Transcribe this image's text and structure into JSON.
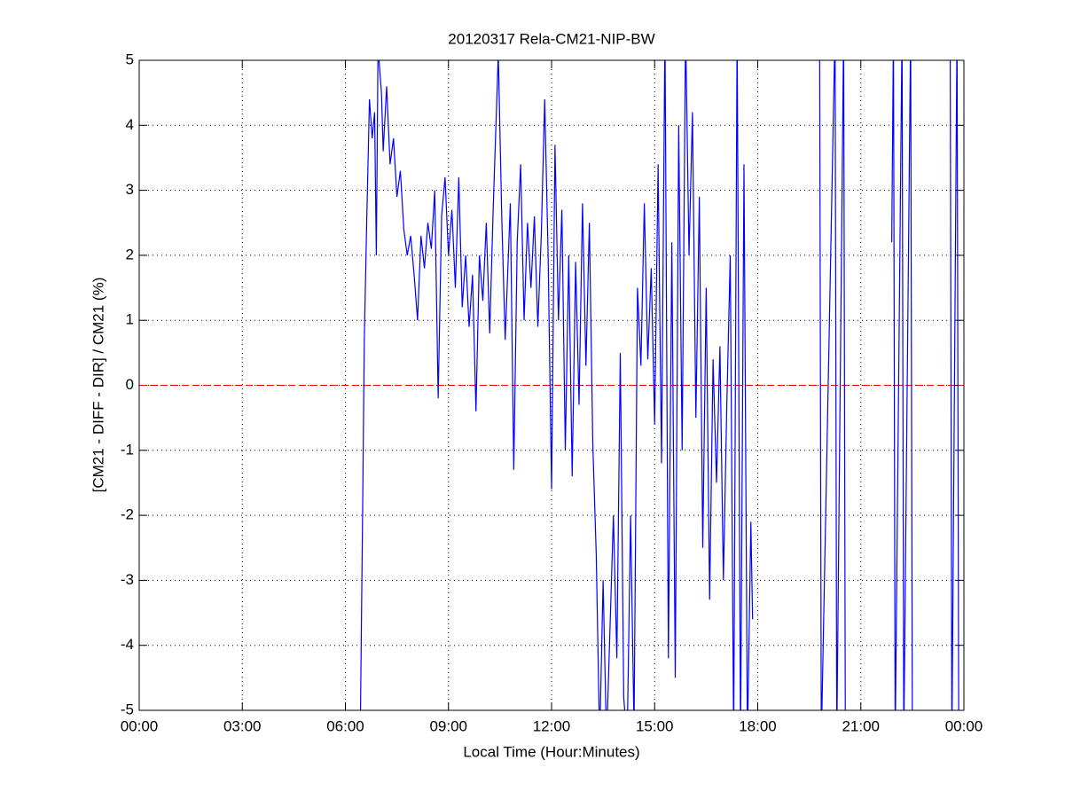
{
  "chart_data": {
    "type": "line",
    "title": "20120317 Rela-CM21-NIP-BW",
    "xlabel": "Local Time (Hour:Minutes)",
    "ylabel": "[CM21 - DIFF - DIR] / CM21 (%)",
    "color": "#0000ff",
    "x": [
      6.43,
      6.5,
      6.55,
      6.62,
      6.7,
      6.78,
      6.85,
      6.9,
      6.95,
      7.05,
      7.1,
      7.2,
      7.3,
      7.4,
      7.5,
      7.6,
      7.7,
      7.8,
      7.9,
      8.0,
      8.1,
      8.2,
      8.3,
      8.4,
      8.5,
      8.6,
      8.7,
      8.8,
      8.9,
      9.0,
      9.1,
      9.2,
      9.3,
      9.4,
      9.5,
      9.6,
      9.7,
      9.8,
      9.9,
      10.0,
      10.1,
      10.2,
      10.3,
      10.45,
      10.55,
      10.65,
      10.8,
      10.9,
      11.0,
      11.1,
      11.2,
      11.3,
      11.4,
      11.5,
      11.6,
      11.7,
      11.8,
      11.9,
      12.0,
      12.1,
      12.2,
      12.3,
      12.4,
      12.5,
      12.6,
      12.7,
      12.8,
      12.9,
      13.0,
      13.1,
      13.2,
      13.3,
      13.4,
      13.5,
      13.6,
      13.8,
      13.9,
      14.0,
      14.1,
      14.2,
      14.3,
      14.4,
      14.5,
      14.6,
      14.7,
      14.8,
      14.9,
      15.0,
      15.1,
      15.2,
      15.3,
      15.4,
      15.5,
      15.6,
      15.7,
      15.8,
      15.9,
      16.0,
      16.1,
      16.2,
      16.3,
      16.4,
      16.5,
      16.6,
      16.7,
      16.8,
      16.9,
      17.0,
      17.1,
      17.2,
      17.3,
      17.4,
      17.5,
      17.6,
      17.7,
      17.8,
      17.85,
      18.8,
      19.8,
      19.85,
      20.25,
      20.3,
      20.5,
      20.55,
      21.2,
      21.9,
      21.95,
      22.0,
      22.2,
      22.25,
      22.45,
      22.5,
      23.0,
      23.6,
      23.65,
      23.8,
      23.85
    ],
    "values": [
      -5.5,
      -2,
      0.7,
      2.5,
      4.4,
      3.8,
      4.2,
      2.0,
      5.2,
      4.5,
      3.6,
      4.6,
      3.4,
      3.8,
      2.9,
      3.3,
      2.4,
      2.0,
      2.3,
      1.7,
      1.0,
      2.3,
      1.8,
      2.5,
      2.1,
      3.0,
      -0.2,
      2.6,
      3.2,
      2.0,
      2.7,
      1.5,
      3.2,
      1.2,
      2.0,
      0.9,
      1.7,
      -0.4,
      2.0,
      1.3,
      2.5,
      0.8,
      2.7,
      5.1,
      2.6,
      0.7,
      2.8,
      -1.3,
      2.2,
      3.4,
      1.0,
      2.5,
      1.5,
      2.6,
      0.9,
      2.3,
      4.4,
      2.0,
      -1.6,
      3.7,
      1.0,
      2.7,
      -1.0,
      2.0,
      -1.4,
      1.9,
      -0.3,
      2.8,
      0.3,
      2.5,
      -0.9,
      -2.6,
      -5.5,
      -3,
      -5.5,
      -2,
      -4.2,
      0.5,
      -4.8,
      -5.5,
      -2,
      -5.3,
      1.5,
      0.3,
      2.8,
      0.4,
      1.8,
      -0.6,
      3.4,
      -1.2,
      5.5,
      -4.2,
      2.2,
      -4.5,
      4.0,
      -1.0,
      5.5,
      2.0,
      4.2,
      -0.5,
      2.9,
      -2.5,
      1.5,
      -3.3,
      0.4,
      -1.5,
      0.6,
      -3.0,
      -0.3,
      2.0,
      -5.5,
      5.5,
      -5.5,
      3.4,
      -5.5,
      -2.1,
      -3.6,
      null,
      5.5,
      -5.5,
      5.5,
      -5.5,
      5.5,
      -5.5,
      null,
      2.2,
      5.5,
      -5.5,
      5.5,
      -5.5,
      5.5,
      -5.5,
      null,
      5.5,
      -5.5,
      5.5,
      -5.5
    ],
    "reference_lines": [
      {
        "value": 0,
        "color": "#ff0000",
        "style": "dashed"
      }
    ],
    "xlim": [
      0,
      24
    ],
    "xticks": [
      {
        "value": 0,
        "label": "00:00"
      },
      {
        "value": 3,
        "label": "03:00"
      },
      {
        "value": 6,
        "label": "06:00"
      },
      {
        "value": 9,
        "label": "09:00"
      },
      {
        "value": 12,
        "label": "12:00"
      },
      {
        "value": 15,
        "label": "15:00"
      },
      {
        "value": 18,
        "label": "18:00"
      },
      {
        "value": 21,
        "label": "21:00"
      },
      {
        "value": 24,
        "label": "00:00"
      }
    ],
    "ylim": [
      -5,
      5
    ],
    "yticks": [
      -5,
      -4,
      -3,
      -2,
      -1,
      0,
      1,
      2,
      3,
      4,
      5
    ],
    "grid": true
  }
}
